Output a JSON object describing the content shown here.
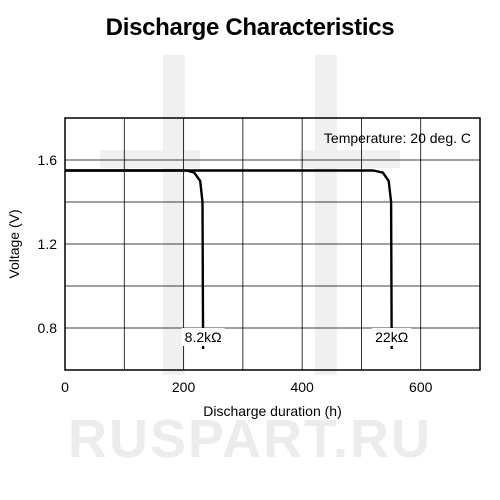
{
  "chart_data": {
    "type": "line",
    "title": "Discharge Characteristics",
    "xlabel": "Discharge duration (h)",
    "ylabel": "Voltage (V)",
    "xlim": [
      0,
      700
    ],
    "ylim": [
      0.6,
      1.8
    ],
    "xticks": [
      0,
      200,
      400,
      600
    ],
    "yticks": [
      0.8,
      1.2,
      1.6
    ],
    "x_grid": [
      0,
      100,
      200,
      300,
      400,
      500,
      600,
      700
    ],
    "y_grid": [
      0.6,
      0.8,
      1.0,
      1.2,
      1.4,
      1.6,
      1.8
    ],
    "grid": true,
    "annotation": "Temperature: 20 deg. C",
    "series": [
      {
        "name": "8.2kΩ",
        "points": [
          [
            0,
            1.55
          ],
          [
            205,
            1.55
          ],
          [
            218,
            1.54
          ],
          [
            228,
            1.5
          ],
          [
            232,
            1.4
          ],
          [
            233,
            0.7
          ]
        ]
      },
      {
        "name": "22kΩ",
        "points": [
          [
            0,
            1.55
          ],
          [
            520,
            1.55
          ],
          [
            536,
            1.54
          ],
          [
            546,
            1.5
          ],
          [
            550,
            1.4
          ],
          [
            551,
            0.7
          ]
        ]
      }
    ]
  },
  "watermark": {
    "text": "RUSPART.RU",
    "color": "#ececec"
  }
}
